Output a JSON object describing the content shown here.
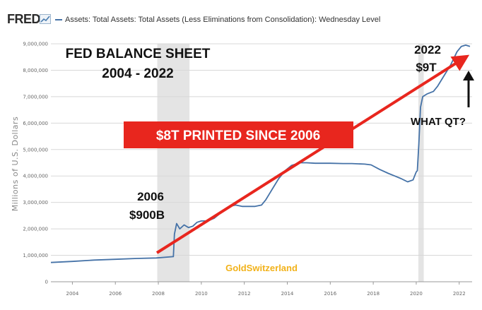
{
  "header": {
    "logo_text": "FRED",
    "series_title": "Assets: Total Assets: Total Assets (Less Eliminations from Consolidation): Wednesday Level"
  },
  "annotations": {
    "title_line1": "FED BALANCE SHEET",
    "title_line2": "2004 - 2022",
    "label_2006_year": "2006",
    "label_2006_value": "$900B",
    "label_2022_year": "2022",
    "label_2022_value": "$9T",
    "banner": "$8T PRINTED SINCE 2006",
    "what_qt": "WHAT QT?",
    "watermark": "GoldSwitzerland"
  },
  "colors": {
    "series_line": "#4572a7",
    "trend_arrow": "#e8261e",
    "banner_bg": "#e8261e",
    "recession_shade": "#e4e4e4",
    "watermark": "#f2b21a"
  },
  "chart_data": {
    "type": "line",
    "ylabel": "Millions of U.S. Dollars",
    "xlim": [
      2003.0,
      2022.6
    ],
    "ylim": [
      0,
      9000000
    ],
    "y_ticks": [
      0,
      1000000,
      2000000,
      3000000,
      4000000,
      5000000,
      6000000,
      7000000,
      8000000,
      9000000
    ],
    "y_tick_labels": [
      "0",
      "1,000,000",
      "2,000,000",
      "3,000,000",
      "4,000,000",
      "5,000,000",
      "6,000,000",
      "7,000,000",
      "8,000,000",
      "9,000,000"
    ],
    "x_ticks": [
      2004,
      2006,
      2008,
      2010,
      2012,
      2014,
      2016,
      2018,
      2020,
      2022
    ],
    "x_tick_labels": [
      "2004",
      "2006",
      "2008",
      "2010",
      "2012",
      "2014",
      "2016",
      "2018",
      "2020",
      "2022"
    ],
    "recessions": [
      [
        2007.95,
        2009.45
      ],
      [
        2020.1,
        2020.35
      ]
    ],
    "series": [
      {
        "x": [
          2003.0,
          2004.0,
          2005.0,
          2006.0,
          2007.0,
          2007.9,
          2008.7,
          2008.75,
          2008.85,
          2009.0,
          2009.2,
          2009.4,
          2009.6,
          2009.8,
          2010.0,
          2010.3,
          2010.6,
          2010.9,
          2011.3,
          2011.6,
          2011.9,
          2012.2,
          2012.5,
          2012.8,
          2013.0,
          2013.3,
          2013.6,
          2013.9,
          2014.2,
          2014.6,
          2014.9,
          2015.3,
          2015.6,
          2016.0,
          2016.6,
          2017.0,
          2017.6,
          2017.9,
          2018.3,
          2018.7,
          2019.0,
          2019.3,
          2019.6,
          2019.85,
          2020.0,
          2020.05,
          2020.12,
          2020.2,
          2020.3,
          2020.5,
          2020.8,
          2021.0,
          2021.3,
          2021.6,
          2021.9,
          2022.1,
          2022.3,
          2022.5
        ],
        "y": [
          730000,
          770000,
          820000,
          850000,
          880000,
          900000,
          950000,
          1800000,
          2200000,
          2000000,
          2150000,
          2050000,
          2100000,
          2250000,
          2300000,
          2300000,
          2400000,
          2600000,
          2850000,
          2900000,
          2850000,
          2850000,
          2850000,
          2900000,
          3100000,
          3500000,
          3900000,
          4200000,
          4400000,
          4500000,
          4500000,
          4480000,
          4480000,
          4480000,
          4470000,
          4470000,
          4450000,
          4420000,
          4250000,
          4100000,
          4000000,
          3900000,
          3780000,
          3850000,
          4150000,
          4200000,
          5200000,
          6600000,
          7000000,
          7100000,
          7200000,
          7400000,
          7800000,
          8200000,
          8700000,
          8900000,
          8950000,
          8900000
        ]
      }
    ]
  }
}
